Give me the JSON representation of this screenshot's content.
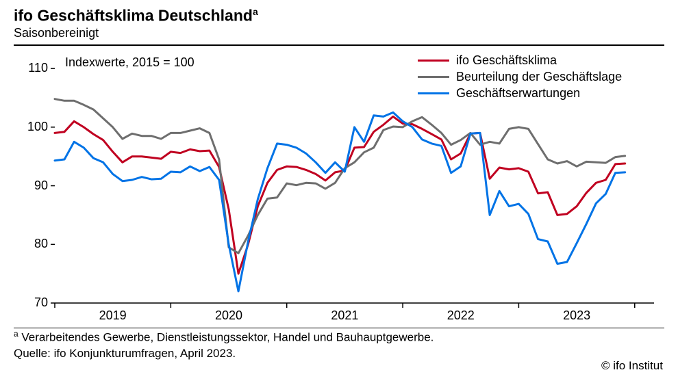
{
  "header": {
    "title": "ifo Geschäftsklima Deutschland",
    "title_sup": "a",
    "subtitle": "Saisonbereinigt"
  },
  "chart": {
    "type": "line",
    "index_label": "Indexwerte, 2015 = 100",
    "ylim": [
      70,
      112
    ],
    "ytick_step": 10,
    "yticks": [
      70,
      80,
      90,
      100,
      110
    ],
    "x_count": 63,
    "x_year_labels": [
      {
        "label": "2019",
        "at": 6
      },
      {
        "label": "2020",
        "at": 18
      },
      {
        "label": "2021",
        "at": 30
      },
      {
        "label": "2022",
        "at": 42
      },
      {
        "label": "2023",
        "at": 54
      }
    ],
    "x_minor_ticks": [
      0,
      12,
      24,
      36,
      48,
      60
    ],
    "background_color": "#ffffff",
    "axis_color": "#000000",
    "axis_width": 1.5,
    "tick_fontsize": 18,
    "line_width": 3,
    "series": [
      {
        "name": "ifo Geschäftsklima",
        "color": "#c00020",
        "values": [
          99.0,
          99.2,
          101.0,
          100.0,
          98.8,
          97.8,
          95.8,
          94.0,
          95.0,
          95.0,
          94.8,
          94.6,
          95.8,
          95.6,
          96.2,
          95.9,
          96.0,
          93.2,
          86.0,
          75.0,
          80.0,
          86.5,
          90.5,
          92.7,
          93.3,
          93.2,
          92.7,
          92.0,
          90.9,
          92.3,
          92.6,
          96.5,
          96.6,
          99.2,
          100.4,
          101.8,
          100.6,
          100.5,
          99.7,
          98.8,
          97.9,
          94.5,
          95.5,
          98.9,
          99.0,
          91.2,
          93.1,
          92.8,
          93.0,
          92.4,
          88.7,
          88.9,
          85.0,
          85.2,
          86.5,
          88.8,
          90.5,
          91.0,
          93.7,
          93.8
        ]
      },
      {
        "name": "Beurteilung der Geschäftslage",
        "color": "#6e6e6e",
        "values": [
          104.8,
          104.5,
          104.5,
          103.8,
          103.0,
          101.5,
          100.0,
          98.0,
          98.9,
          98.5,
          98.5,
          98.0,
          99.0,
          99.0,
          99.4,
          99.8,
          99.0,
          94.5,
          79.5,
          78.5,
          81.5,
          85.0,
          87.8,
          88.0,
          90.4,
          90.1,
          90.5,
          90.4,
          89.5,
          90.5,
          93.0,
          94.0,
          95.7,
          96.5,
          99.5,
          100.1,
          100.0,
          101.0,
          101.7,
          100.4,
          99.0,
          97.0,
          97.8,
          99.0,
          97.0,
          97.5,
          97.2,
          99.7,
          100.0,
          99.7,
          97.1,
          94.5,
          93.8,
          94.2,
          93.3,
          94.1,
          94.0,
          93.9,
          94.9,
          95.1
        ]
      },
      {
        "name": "Geschäftserwartungen",
        "color": "#0073e6",
        "values": [
          94.3,
          94.5,
          97.5,
          96.5,
          94.7,
          94.0,
          92.0,
          90.8,
          91.0,
          91.5,
          91.1,
          91.2,
          92.4,
          92.3,
          93.3,
          92.5,
          93.2,
          91.0,
          80.0,
          72.0,
          80.5,
          87.7,
          93.0,
          97.2,
          97.0,
          96.5,
          95.5,
          94.0,
          92.2,
          94.0,
          92.4,
          100.0,
          97.5,
          102.0,
          101.8,
          102.5,
          101.0,
          100.0,
          97.9,
          97.2,
          96.8,
          92.2,
          93.3,
          98.9,
          99.0,
          85.0,
          89.1,
          86.5,
          86.9,
          85.2,
          80.9,
          80.5,
          76.7,
          77.0,
          80.2,
          83.5,
          87.0,
          88.6,
          92.2,
          92.3
        ]
      }
    ]
  },
  "footer": {
    "footnote_sup": "a",
    "footnote": " Verarbeitendes  Gewerbe,  Dienstleistungssektor,  Handel und Bauhauptgewerbe.",
    "source": "Quelle: ifo Konjunkturumfragen, April 2023.",
    "copyright": "© ifo Institut"
  }
}
